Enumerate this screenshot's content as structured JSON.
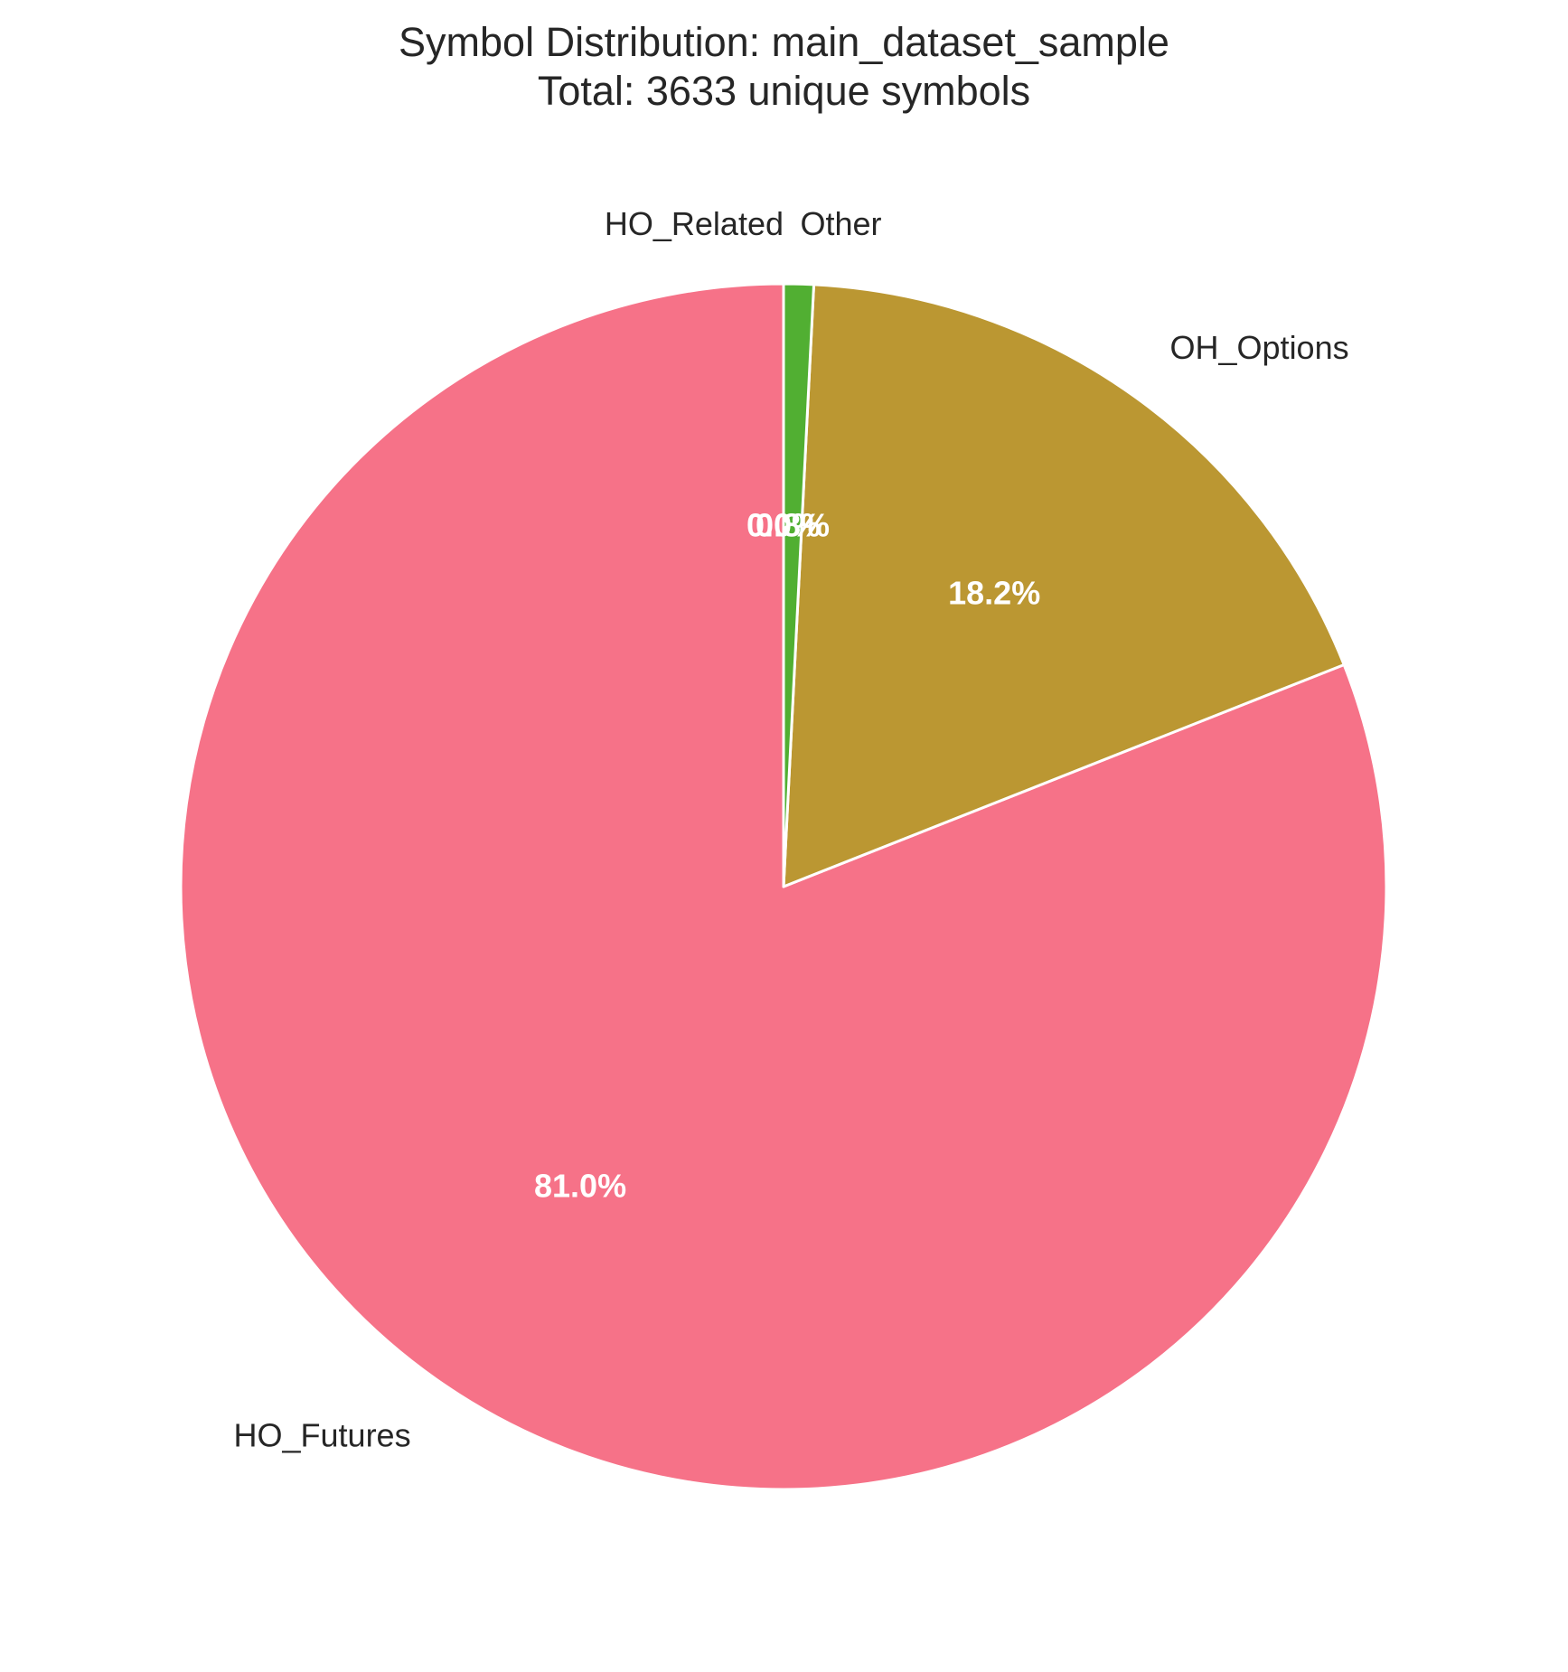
{
  "chart_data": {
    "type": "pie",
    "title": "Symbol Distribution: main_dataset_sample",
    "subtitle": "Total: 3633 unique symbols",
    "start_angle_deg": 90,
    "direction": "counterclockwise",
    "legend": "none",
    "slices": [
      {
        "label": "HO_Futures",
        "value": 81.0,
        "pct_label": "81.0%",
        "color": "#f67288"
      },
      {
        "label": "OH_Options",
        "value": 18.2,
        "pct_label": "18.2%",
        "color": "#bb9732"
      },
      {
        "label": "Other",
        "value": 0.8,
        "pct_label": "0.8%",
        "color": "#51af32"
      },
      {
        "label": "HO_Related",
        "value": 0.0,
        "pct_label": "0.0%",
        "color": "#1f77b4"
      }
    ]
  }
}
